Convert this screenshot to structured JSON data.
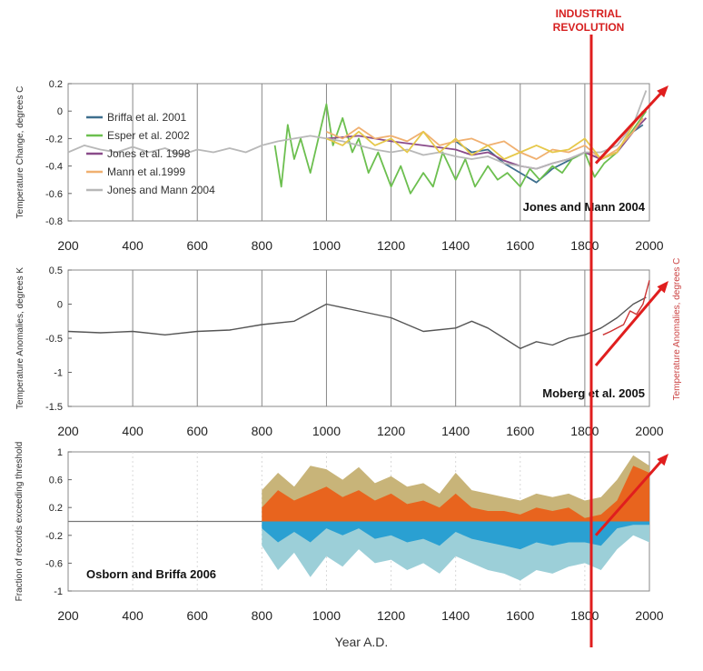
{
  "annotation": {
    "line1": "INDUSTRIAL",
    "line2": "REVOLUTION",
    "year": 1820,
    "color": "#e01e1e"
  },
  "xlabel": "Year A.D.",
  "chart_data": [
    {
      "type": "line",
      "title": "Jones and Mann 2004",
      "ylabel": "Temperature Change, degrees C",
      "xlim": [
        200,
        2000
      ],
      "ylim": [
        -0.8,
        0.2
      ],
      "xticks": [
        200,
        400,
        600,
        800,
        1000,
        1200,
        1400,
        1600,
        1800,
        2000
      ],
      "yticks": [
        "0.2",
        "0",
        "-0.2",
        "-0.4",
        "-0.6",
        "-0.8"
      ],
      "legend_position": "left",
      "series": [
        {
          "name": "Briffa et al. 2001",
          "color": "#3e6f8e",
          "x": [
            1400,
            1450,
            1500,
            1550,
            1600,
            1650,
            1700,
            1750,
            1800,
            1850,
            1900,
            1950,
            1980
          ],
          "values": [
            -0.22,
            -0.3,
            -0.28,
            -0.38,
            -0.45,
            -0.52,
            -0.42,
            -0.36,
            -0.3,
            -0.35,
            -0.3,
            -0.15,
            -0.1
          ]
        },
        {
          "name": "Esper et al. 2002",
          "color": "#6cbf4f",
          "x": [
            840,
            860,
            880,
            900,
            920,
            950,
            980,
            1000,
            1020,
            1050,
            1080,
            1100,
            1130,
            1160,
            1200,
            1230,
            1260,
            1300,
            1330,
            1360,
            1400,
            1430,
            1460,
            1500,
            1530,
            1560,
            1600,
            1630,
            1660,
            1700,
            1730,
            1760,
            1800,
            1830,
            1860,
            1900,
            1930,
            1960,
            1990
          ],
          "values": [
            -0.25,
            -0.55,
            -0.1,
            -0.35,
            -0.2,
            -0.45,
            -0.15,
            0.05,
            -0.25,
            -0.05,
            -0.3,
            -0.2,
            -0.45,
            -0.3,
            -0.55,
            -0.4,
            -0.6,
            -0.45,
            -0.55,
            -0.3,
            -0.5,
            -0.35,
            -0.55,
            -0.4,
            -0.5,
            -0.45,
            -0.55,
            -0.42,
            -0.5,
            -0.4,
            -0.45,
            -0.35,
            -0.3,
            -0.48,
            -0.38,
            -0.3,
            -0.2,
            -0.1,
            0.0
          ]
        },
        {
          "name": "Jones et al. 1998",
          "color": "#8a4b8a",
          "x": [
            1000,
            1100,
            1200,
            1300,
            1400,
            1450,
            1500,
            1550,
            1600,
            1650,
            1700,
            1750,
            1800,
            1850,
            1900,
            1950,
            1990
          ],
          "values": [
            -0.2,
            -0.18,
            -0.22,
            -0.25,
            -0.28,
            -0.32,
            -0.3,
            -0.36,
            -0.4,
            -0.42,
            -0.38,
            -0.35,
            -0.3,
            -0.35,
            -0.3,
            -0.15,
            -0.05
          ]
        },
        {
          "name": "Mann et al.1999",
          "color": "#f0b070",
          "x": [
            1000,
            1050,
            1100,
            1150,
            1200,
            1250,
            1300,
            1350,
            1400,
            1450,
            1500,
            1550,
            1600,
            1650,
            1700,
            1750,
            1800,
            1850,
            1900,
            1950,
            1980
          ],
          "values": [
            -0.15,
            -0.2,
            -0.12,
            -0.2,
            -0.18,
            -0.22,
            -0.15,
            -0.25,
            -0.22,
            -0.2,
            -0.25,
            -0.22,
            -0.3,
            -0.35,
            -0.28,
            -0.3,
            -0.25,
            -0.35,
            -0.28,
            -0.15,
            -0.05
          ]
        },
        {
          "name": "Jones and Mann 2004",
          "color": "#b8b8b8",
          "x": [
            200,
            250,
            300,
            350,
            400,
            450,
            500,
            550,
            600,
            650,
            700,
            750,
            800,
            850,
            900,
            950,
            1000,
            1050,
            1100,
            1150,
            1200,
            1250,
            1300,
            1350,
            1400,
            1450,
            1500,
            1550,
            1600,
            1650,
            1700,
            1750,
            1800,
            1850,
            1900,
            1950,
            1990
          ],
          "values": [
            -0.3,
            -0.25,
            -0.28,
            -0.3,
            -0.26,
            -0.3,
            -0.27,
            -0.32,
            -0.28,
            -0.3,
            -0.27,
            -0.3,
            -0.25,
            -0.22,
            -0.2,
            -0.18,
            -0.2,
            -0.22,
            -0.25,
            -0.28,
            -0.3,
            -0.28,
            -0.32,
            -0.3,
            -0.33,
            -0.35,
            -0.33,
            -0.38,
            -0.4,
            -0.42,
            -0.38,
            -0.35,
            -0.3,
            -0.3,
            -0.25,
            -0.1,
            0.15
          ]
        },
        {
          "name": "",
          "color": "#e6c84a",
          "x": [
            1000,
            1050,
            1100,
            1150,
            1200,
            1250,
            1300,
            1350,
            1400,
            1450,
            1500,
            1550,
            1600,
            1650,
            1700,
            1750,
            1800,
            1850,
            1900,
            1950,
            1980
          ],
          "values": [
            -0.2,
            -0.25,
            -0.15,
            -0.25,
            -0.2,
            -0.3,
            -0.15,
            -0.3,
            -0.2,
            -0.32,
            -0.25,
            -0.35,
            -0.3,
            -0.25,
            -0.3,
            -0.28,
            -0.2,
            -0.35,
            -0.3,
            -0.1,
            0.0
          ]
        }
      ]
    },
    {
      "type": "line",
      "title": "Moberg et al. 2005",
      "ylabel": "Temperature Anomalies, degrees K",
      "ylabel_right": "Temperature Anomalies, degrees C",
      "xlim": [
        200,
        2000
      ],
      "ylim": [
        -1.5,
        0.5
      ],
      "xticks": [
        200,
        400,
        600,
        800,
        1000,
        1200,
        1400,
        1600,
        1800,
        2000
      ],
      "yticks": [
        "0.5",
        "0",
        "-0.5",
        "-1",
        "-1.5"
      ],
      "series": [
        {
          "name": "",
          "color": "#555555",
          "x": [
            200,
            300,
            400,
            500,
            600,
            700,
            800,
            900,
            1000,
            1100,
            1200,
            1300,
            1400,
            1450,
            1500,
            1550,
            1600,
            1650,
            1700,
            1750,
            1800,
            1850,
            1900,
            1950,
            1990
          ],
          "values": [
            -0.4,
            -0.42,
            -0.4,
            -0.45,
            -0.4,
            -0.38,
            -0.3,
            -0.25,
            0.0,
            -0.1,
            -0.2,
            -0.4,
            -0.35,
            -0.25,
            -0.35,
            -0.5,
            -0.65,
            -0.55,
            -0.6,
            -0.5,
            -0.45,
            -0.35,
            -0.2,
            0.0,
            0.1
          ]
        },
        {
          "name": "",
          "color": "#cc3333",
          "x": [
            1856,
            1880,
            1900,
            1920,
            1940,
            1960,
            1980,
            2000
          ],
          "values": [
            -0.45,
            -0.4,
            -0.35,
            -0.3,
            -0.1,
            -0.15,
            0.0,
            0.35
          ]
        }
      ]
    },
    {
      "type": "area",
      "title": "Osborn and Briffa 2006",
      "ylabel": "Fraction of records exceeding threshold",
      "xlim": [
        200,
        2000
      ],
      "ylim": [
        -1,
        1
      ],
      "xticks": [
        200,
        400,
        600,
        800,
        1000,
        1200,
        1400,
        1600,
        1800,
        2000
      ],
      "yticks": [
        "1",
        "0.6",
        "0.2",
        "-0.2",
        "-0.6",
        "-1"
      ],
      "series": [
        {
          "name": "",
          "color": "#c8b479",
          "x": [
            800,
            850,
            900,
            950,
            1000,
            1050,
            1100,
            1150,
            1200,
            1250,
            1300,
            1350,
            1400,
            1450,
            1500,
            1550,
            1600,
            1650,
            1700,
            1750,
            1800,
            1850,
            1900,
            1950,
            2000
          ],
          "values": [
            0.45,
            0.7,
            0.5,
            0.8,
            0.75,
            0.6,
            0.78,
            0.55,
            0.65,
            0.5,
            0.55,
            0.4,
            0.7,
            0.45,
            0.4,
            0.35,
            0.3,
            0.4,
            0.35,
            0.4,
            0.3,
            0.35,
            0.6,
            0.95,
            0.8
          ]
        },
        {
          "name": "",
          "color": "#e8641e",
          "x": [
            800,
            850,
            900,
            950,
            1000,
            1050,
            1100,
            1150,
            1200,
            1250,
            1300,
            1350,
            1400,
            1450,
            1500,
            1550,
            1600,
            1650,
            1700,
            1750,
            1800,
            1850,
            1900,
            1950,
            2000
          ],
          "values": [
            0.2,
            0.45,
            0.3,
            0.4,
            0.5,
            0.35,
            0.45,
            0.3,
            0.4,
            0.25,
            0.3,
            0.2,
            0.4,
            0.2,
            0.15,
            0.15,
            0.1,
            0.2,
            0.15,
            0.2,
            0.05,
            0.1,
            0.3,
            0.8,
            0.7
          ]
        },
        {
          "name": "",
          "color": "#9ccfd8",
          "x": [
            800,
            850,
            900,
            950,
            1000,
            1050,
            1100,
            1150,
            1200,
            1250,
            1300,
            1350,
            1400,
            1450,
            1500,
            1550,
            1600,
            1650,
            1700,
            1750,
            1800,
            1850,
            1900,
            1950,
            2000
          ],
          "values": [
            -0.35,
            -0.7,
            -0.45,
            -0.8,
            -0.5,
            -0.65,
            -0.4,
            -0.6,
            -0.55,
            -0.7,
            -0.6,
            -0.75,
            -0.5,
            -0.6,
            -0.7,
            -0.75,
            -0.85,
            -0.7,
            -0.75,
            -0.65,
            -0.6,
            -0.7,
            -0.4,
            -0.2,
            -0.3
          ]
        },
        {
          "name": "",
          "color": "#2aa0d2",
          "x": [
            800,
            850,
            900,
            950,
            1000,
            1050,
            1100,
            1150,
            1200,
            1250,
            1300,
            1350,
            1400,
            1450,
            1500,
            1550,
            1600,
            1650,
            1700,
            1750,
            1800,
            1850,
            1900,
            1950,
            2000
          ],
          "values": [
            -0.1,
            -0.3,
            -0.15,
            -0.3,
            -0.1,
            -0.2,
            -0.1,
            -0.25,
            -0.2,
            -0.3,
            -0.25,
            -0.35,
            -0.15,
            -0.25,
            -0.3,
            -0.35,
            -0.4,
            -0.3,
            -0.35,
            -0.3,
            -0.3,
            -0.35,
            -0.1,
            -0.05,
            -0.05
          ]
        }
      ]
    }
  ]
}
